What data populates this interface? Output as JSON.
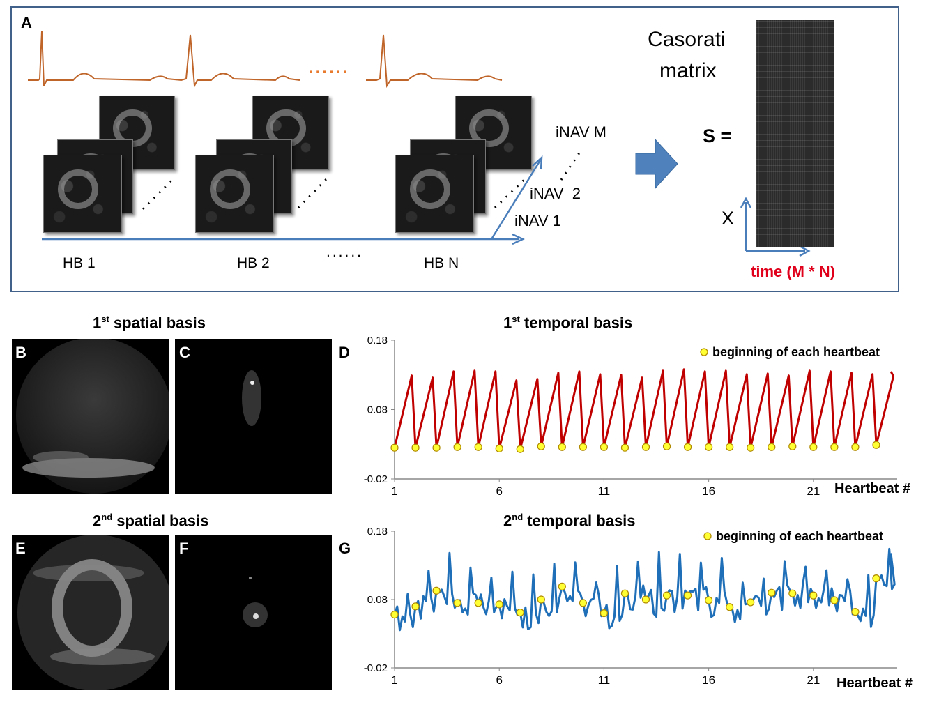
{
  "panel_a": {
    "letter": "A",
    "hb_labels": [
      "HB 1",
      "HB 2",
      "HB N"
    ],
    "hb_ellipsis": "......",
    "ecg_ellipsis": "......",
    "inav_labels": [
      "iNAV M",
      "iNAV  2",
      "iNAV 1"
    ],
    "casorati_title_line1": "Casorati",
    "casorati_title_line2": "matrix",
    "s_equals": "S =",
    "x_axis_label": "X",
    "time_label": "time (M * N)"
  },
  "panel_titles": {
    "spatial1_sup": "st",
    "spatial1_num": "1",
    "spatial1_rest": " spatial basis",
    "temporal1_sup": "st",
    "temporal1_num": "1",
    "temporal1_rest": " temporal basis",
    "spatial2_sup": "nd",
    "spatial2_num": "2",
    "spatial2_rest": " spatial basis",
    "temporal2_sup": "nd",
    "temporal2_num": "2",
    "temporal2_rest": " temporal basis"
  },
  "letters": {
    "b": "B",
    "c": "C",
    "d": "D",
    "e": "E",
    "f": "F",
    "g": "G"
  },
  "colors": {
    "frame": "#41618a",
    "ecg": "#c0652a",
    "red_series": "#c00000",
    "blue_series": "#1f6fb8",
    "marker_fill": "#ffff33",
    "arrow_blue": "#4a7ebb",
    "time_red": "#e0001b"
  },
  "chart_data": [
    {
      "type": "line",
      "title": "1st temporal basis",
      "xlabel": "Heartbeat #",
      "ylim": [
        -0.02,
        0.18
      ],
      "yticks": [
        "0.18",
        "0.08",
        "-0.02"
      ],
      "xticks": [
        "1",
        "6",
        "11",
        "16",
        "21"
      ],
      "legend": "beginning of each heartbeat",
      "legend_position": "top-right",
      "series": [
        {
          "name": "beginning of each heartbeat",
          "x": [
            1,
            2,
            3,
            4,
            5,
            6,
            7,
            8,
            9,
            10,
            11,
            12,
            13,
            14,
            15,
            16,
            17,
            18,
            19,
            20,
            21,
            22,
            23,
            24
          ],
          "values": [
            0.025,
            0.025,
            0.025,
            0.026,
            0.026,
            0.024,
            0.023,
            0.027,
            0.026,
            0.026,
            0.026,
            0.025,
            0.026,
            0.027,
            0.026,
            0.026,
            0.026,
            0.025,
            0.026,
            0.027,
            0.026,
            0.026,
            0.026,
            0.029
          ]
        },
        {
          "name": "",
          "peaks": [
            0.129,
            0.126,
            0.135,
            0.136,
            0.135,
            0.122,
            0.124,
            0.133,
            0.135,
            0.131,
            0.13,
            0.126,
            0.136,
            0.138,
            0.135,
            0.136,
            0.131,
            0.132,
            0.129,
            0.136,
            0.135,
            0.133,
            0.131,
            0.128,
            0.135
          ]
        }
      ]
    },
    {
      "type": "line",
      "title": "2nd temporal basis",
      "xlabel": "Heartbeat #",
      "ylim": [
        -0.02,
        0.18
      ],
      "yticks": [
        "0.18",
        "0.08",
        "-0.02"
      ],
      "xticks": [
        "1",
        "6",
        "11",
        "16",
        "21"
      ],
      "legend": "beginning of each heartbeat",
      "legend_position": "top-right",
      "series": [
        {
          "name": "beginning of each heartbeat",
          "x": [
            1,
            2,
            3,
            4,
            5,
            6,
            7,
            8,
            9,
            10,
            11,
            12,
            13,
            14,
            15,
            16,
            17,
            18,
            19,
            20,
            21,
            22,
            23,
            24
          ],
          "values": [
            0.058,
            0.07,
            0.093,
            0.075,
            0.075,
            0.073,
            0.061,
            0.08,
            0.099,
            0.075,
            0.06,
            0.089,
            0.08,
            0.086,
            0.086,
            0.079,
            0.069,
            0.076,
            0.09,
            0.089,
            0.086,
            0.079,
            0.062,
            0.111
          ]
        }
      ]
    }
  ]
}
